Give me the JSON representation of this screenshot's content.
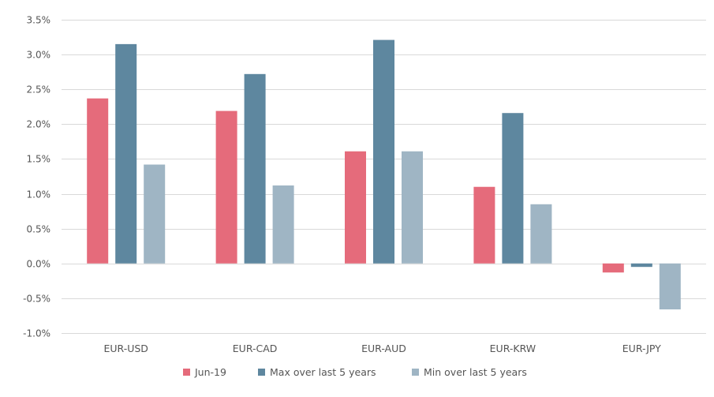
{
  "chart_data": {
    "type": "bar",
    "title": "",
    "xlabel": "",
    "ylabel": "",
    "categories": [
      "EUR-USD",
      "EUR-CAD",
      "EUR-AUD",
      "EUR-KRW",
      "EUR-JPY"
    ],
    "series": [
      {
        "name": "Jun-19",
        "color": "#e56b7b",
        "values": [
          2.37,
          2.19,
          1.61,
          1.1,
          -0.13
        ]
      },
      {
        "name": "Max over last 5 years",
        "color": "#5e879f",
        "values": [
          3.15,
          2.72,
          3.21,
          2.16,
          -0.05
        ]
      },
      {
        "name": "Min over last 5 years",
        "color": "#9fb5c4",
        "values": [
          1.42,
          1.12,
          1.61,
          0.85,
          -0.66
        ]
      }
    ],
    "ylim": [
      -1.0,
      3.5
    ],
    "yticks": [
      -1.0,
      -0.5,
      0.0,
      0.5,
      1.0,
      1.5,
      2.0,
      2.5,
      3.0,
      3.5
    ],
    "ytick_labels": [
      "-1.0%",
      "-0.5%",
      "0.0%",
      "0.5%",
      "1.0%",
      "1.5%",
      "2.0%",
      "2.5%",
      "3.0%",
      "3.5%"
    ],
    "grid": true,
    "legend_position": "bottom"
  }
}
